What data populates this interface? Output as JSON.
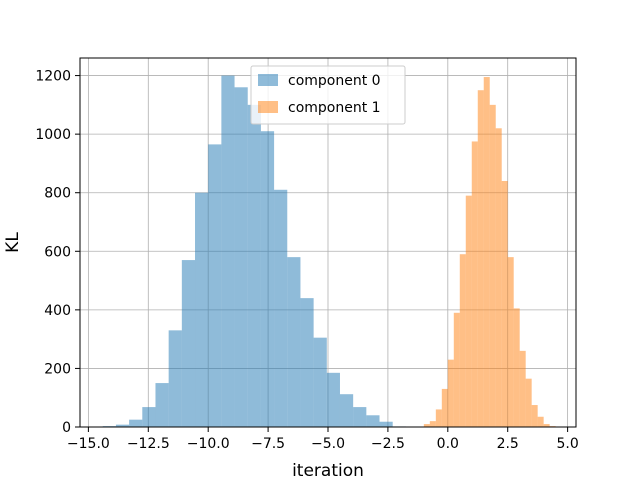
{
  "chart_data": {
    "type": "bar",
    "title": "",
    "xlabel": "iteration",
    "ylabel": "KL",
    "xlim": [
      -15.35,
      5.35
    ],
    "ylim": [
      0,
      1260
    ],
    "xticks": [
      -15.0,
      -12.5,
      -10.0,
      -7.5,
      -5.0,
      -2.5,
      0.0,
      2.5,
      5.0
    ],
    "xtick_labels": [
      "−15.0",
      "−12.5",
      "−10.0",
      "−7.5",
      "−5.0",
      "−2.5",
      "0.0",
      "2.5",
      "5.0"
    ],
    "yticks": [
      0,
      200,
      400,
      600,
      800,
      1000,
      1200
    ],
    "ytick_labels": [
      "0",
      "200",
      "400",
      "600",
      "800",
      "1000",
      "1200"
    ],
    "grid": true,
    "legend_position": "top-center",
    "series": [
      {
        "name": "component 0",
        "color": "#1f77b4",
        "alpha": 0.5,
        "bins": [
          {
            "x0": -14.4,
            "x1": -13.85,
            "y": 3
          },
          {
            "x0": -13.85,
            "x1": -13.3,
            "y": 8
          },
          {
            "x0": -13.3,
            "x1": -12.75,
            "y": 25
          },
          {
            "x0": -12.75,
            "x1": -12.2,
            "y": 68
          },
          {
            "x0": -12.2,
            "x1": -11.65,
            "y": 150
          },
          {
            "x0": -11.65,
            "x1": -11.1,
            "y": 330
          },
          {
            "x0": -11.1,
            "x1": -10.55,
            "y": 570
          },
          {
            "x0": -10.55,
            "x1": -10.0,
            "y": 800
          },
          {
            "x0": -10.0,
            "x1": -9.45,
            "y": 965
          },
          {
            "x0": -9.45,
            "x1": -8.9,
            "y": 1200
          },
          {
            "x0": -8.9,
            "x1": -8.35,
            "y": 1160
          },
          {
            "x0": -8.35,
            "x1": -7.8,
            "y": 1100
          },
          {
            "x0": -7.8,
            "x1": -7.25,
            "y": 1010
          },
          {
            "x0": -7.25,
            "x1": -6.7,
            "y": 810
          },
          {
            "x0": -6.7,
            "x1": -6.15,
            "y": 580
          },
          {
            "x0": -6.15,
            "x1": -5.6,
            "y": 440
          },
          {
            "x0": -5.6,
            "x1": -5.05,
            "y": 305
          },
          {
            "x0": -5.05,
            "x1": -4.5,
            "y": 185
          },
          {
            "x0": -4.5,
            "x1": -3.95,
            "y": 112
          },
          {
            "x0": -3.95,
            "x1": -3.4,
            "y": 68
          },
          {
            "x0": -3.4,
            "x1": -2.85,
            "y": 40
          },
          {
            "x0": -2.85,
            "x1": -2.3,
            "y": 18
          },
          {
            "x0": -2.3,
            "x1": -1.75,
            "y": 2
          }
        ]
      },
      {
        "name": "component 1",
        "color": "#ff7f0e",
        "alpha": 0.5,
        "bins": [
          {
            "x0": -1.0,
            "x1": -0.75,
            "y": 10
          },
          {
            "x0": -0.75,
            "x1": -0.5,
            "y": 20
          },
          {
            "x0": -0.5,
            "x1": -0.25,
            "y": 60
          },
          {
            "x0": -0.25,
            "x1": 0.0,
            "y": 130
          },
          {
            "x0": 0.0,
            "x1": 0.25,
            "y": 230
          },
          {
            "x0": 0.25,
            "x1": 0.5,
            "y": 390
          },
          {
            "x0": 0.5,
            "x1": 0.75,
            "y": 590
          },
          {
            "x0": 0.75,
            "x1": 1.0,
            "y": 790
          },
          {
            "x0": 1.0,
            "x1": 1.25,
            "y": 975
          },
          {
            "x0": 1.25,
            "x1": 1.5,
            "y": 1150
          },
          {
            "x0": 1.5,
            "x1": 1.75,
            "y": 1195
          },
          {
            "x0": 1.75,
            "x1": 2.0,
            "y": 1100
          },
          {
            "x0": 2.0,
            "x1": 2.25,
            "y": 1020
          },
          {
            "x0": 2.25,
            "x1": 2.5,
            "y": 840
          },
          {
            "x0": 2.5,
            "x1": 2.75,
            "y": 580
          },
          {
            "x0": 2.75,
            "x1": 3.0,
            "y": 405
          },
          {
            "x0": 3.0,
            "x1": 3.25,
            "y": 260
          },
          {
            "x0": 3.25,
            "x1": 3.5,
            "y": 165
          },
          {
            "x0": 3.5,
            "x1": 3.75,
            "y": 75
          },
          {
            "x0": 3.75,
            "x1": 4.0,
            "y": 35
          },
          {
            "x0": 4.0,
            "x1": 4.25,
            "y": 10
          },
          {
            "x0": 4.25,
            "x1": 4.5,
            "y": 3
          }
        ]
      }
    ]
  }
}
